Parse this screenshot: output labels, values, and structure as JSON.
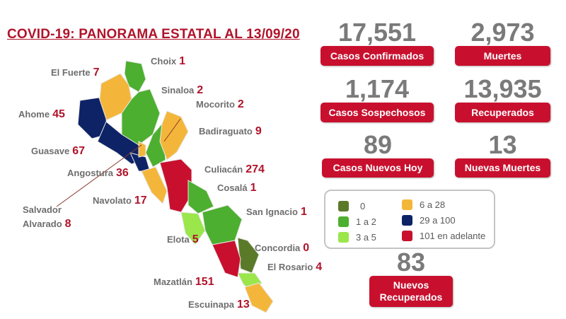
{
  "title": "COVID-19: PANORAMA ESTATAL AL 13/09/20",
  "colors": {
    "c0": "#5a7a2a",
    "c1": "#4caf2f",
    "c3": "#9be64a",
    "c6": "#f4b63a",
    "c29": "#0d2366",
    "c101": "#c8102e"
  },
  "municipalities": [
    {
      "name": "Choix",
      "value": "1",
      "cat": "c1"
    },
    {
      "name": "El Fuerte",
      "value": "7",
      "cat": "c6"
    },
    {
      "name": "Sinaloa",
      "value": "2",
      "cat": "c1"
    },
    {
      "name": "Mocorito",
      "value": "2",
      "cat": "c1"
    },
    {
      "name": "Ahome",
      "value": "45",
      "cat": "c29"
    },
    {
      "name": "Badiraguato",
      "value": "9",
      "cat": "c6"
    },
    {
      "name": "Guasave",
      "value": "67",
      "cat": "c29"
    },
    {
      "name": "Angostura",
      "value": "36",
      "cat": "c29"
    },
    {
      "name": "Culiacán",
      "value": "274",
      "cat": "c101"
    },
    {
      "name": "Cosalá",
      "value": "1",
      "cat": "c1"
    },
    {
      "name": "Navolato",
      "value": "17",
      "cat": "c6"
    },
    {
      "name": "Salvador",
      "name2": "Alvarado",
      "value": "8",
      "cat": "c6"
    },
    {
      "name": "San Ignacio",
      "value": "1",
      "cat": "c1"
    },
    {
      "name": "Elota",
      "value": "5",
      "cat": "c3"
    },
    {
      "name": "Concordia",
      "value": "0",
      "cat": "c0"
    },
    {
      "name": "El Rosario",
      "value": "4",
      "cat": "c3"
    },
    {
      "name": "Mazatlán",
      "value": "151",
      "cat": "c101"
    },
    {
      "name": "Escuinapa",
      "value": "13",
      "cat": "c6"
    }
  ],
  "stats": {
    "confirmados": {
      "value": "17,551",
      "label": "Casos Confirmados"
    },
    "muertes": {
      "value": "2,973",
      "label": "Muertes"
    },
    "sospechosos": {
      "value": "1,174",
      "label": "Casos Sospechosos"
    },
    "recuperados": {
      "value": "13,935",
      "label": "Recuperados"
    },
    "nuevos_hoy": {
      "value": "89",
      "label": "Casos Nuevos Hoy"
    },
    "nuevas_muertes": {
      "value": "13",
      "label": "Nuevas Muertes"
    },
    "nuevos_recuperados": {
      "value": "83",
      "label1": "Nuevos",
      "label2": "Recuperados"
    }
  },
  "legend": [
    {
      "label": "0",
      "color": "#5a7a2a"
    },
    {
      "label": "1 a 2",
      "color": "#4caf2f"
    },
    {
      "label": "3 a 5",
      "color": "#9be64a"
    },
    {
      "label": "6 a 28",
      "color": "#f4b63a"
    },
    {
      "label": "29 a 100",
      "color": "#0d2366"
    },
    {
      "label": "101 en adelante",
      "color": "#c8102e"
    }
  ]
}
